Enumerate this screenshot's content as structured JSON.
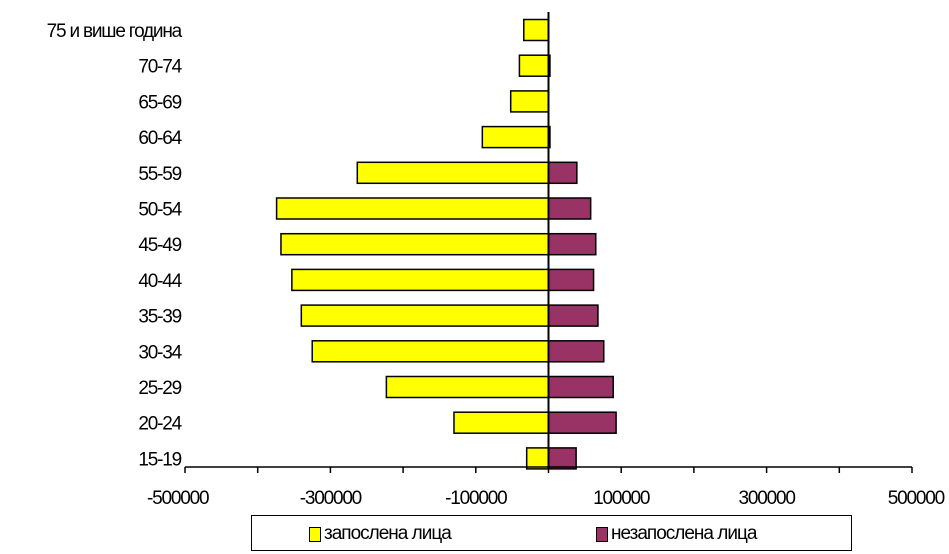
{
  "chart_data": {
    "type": "bar",
    "orientation": "horizontal",
    "categories": [
      "15-19",
      "20-24",
      "25-29",
      "30-34",
      "35-39",
      "40-44",
      "45-49",
      "50-54",
      "55-59",
      "60-64",
      "65-69",
      "70-74",
      "75 и више година"
    ],
    "series": [
      {
        "name": "запослена лица",
        "color": "#ffff00",
        "values": [
          -30000,
          -130000,
          -223000,
          -325000,
          -340000,
          -353000,
          -368000,
          -374000,
          -263000,
          -91000,
          -52000,
          -40000,
          -34000
        ]
      },
      {
        "name": "незапослена лица",
        "color": "#993366",
        "values": [
          38000,
          93000,
          89000,
          76000,
          68000,
          62000,
          65000,
          58000,
          39000,
          2000,
          0,
          2000,
          0
        ]
      }
    ],
    "xlim": [
      -500000,
      500000
    ],
    "xticks": [
      -500000,
      -300000,
      -100000,
      100000,
      300000,
      500000
    ],
    "xtick_labels": [
      "-500000",
      "-300000",
      "-100000",
      "100000",
      "300000",
      "500000"
    ],
    "grid": false,
    "legend_position": "bottom"
  }
}
